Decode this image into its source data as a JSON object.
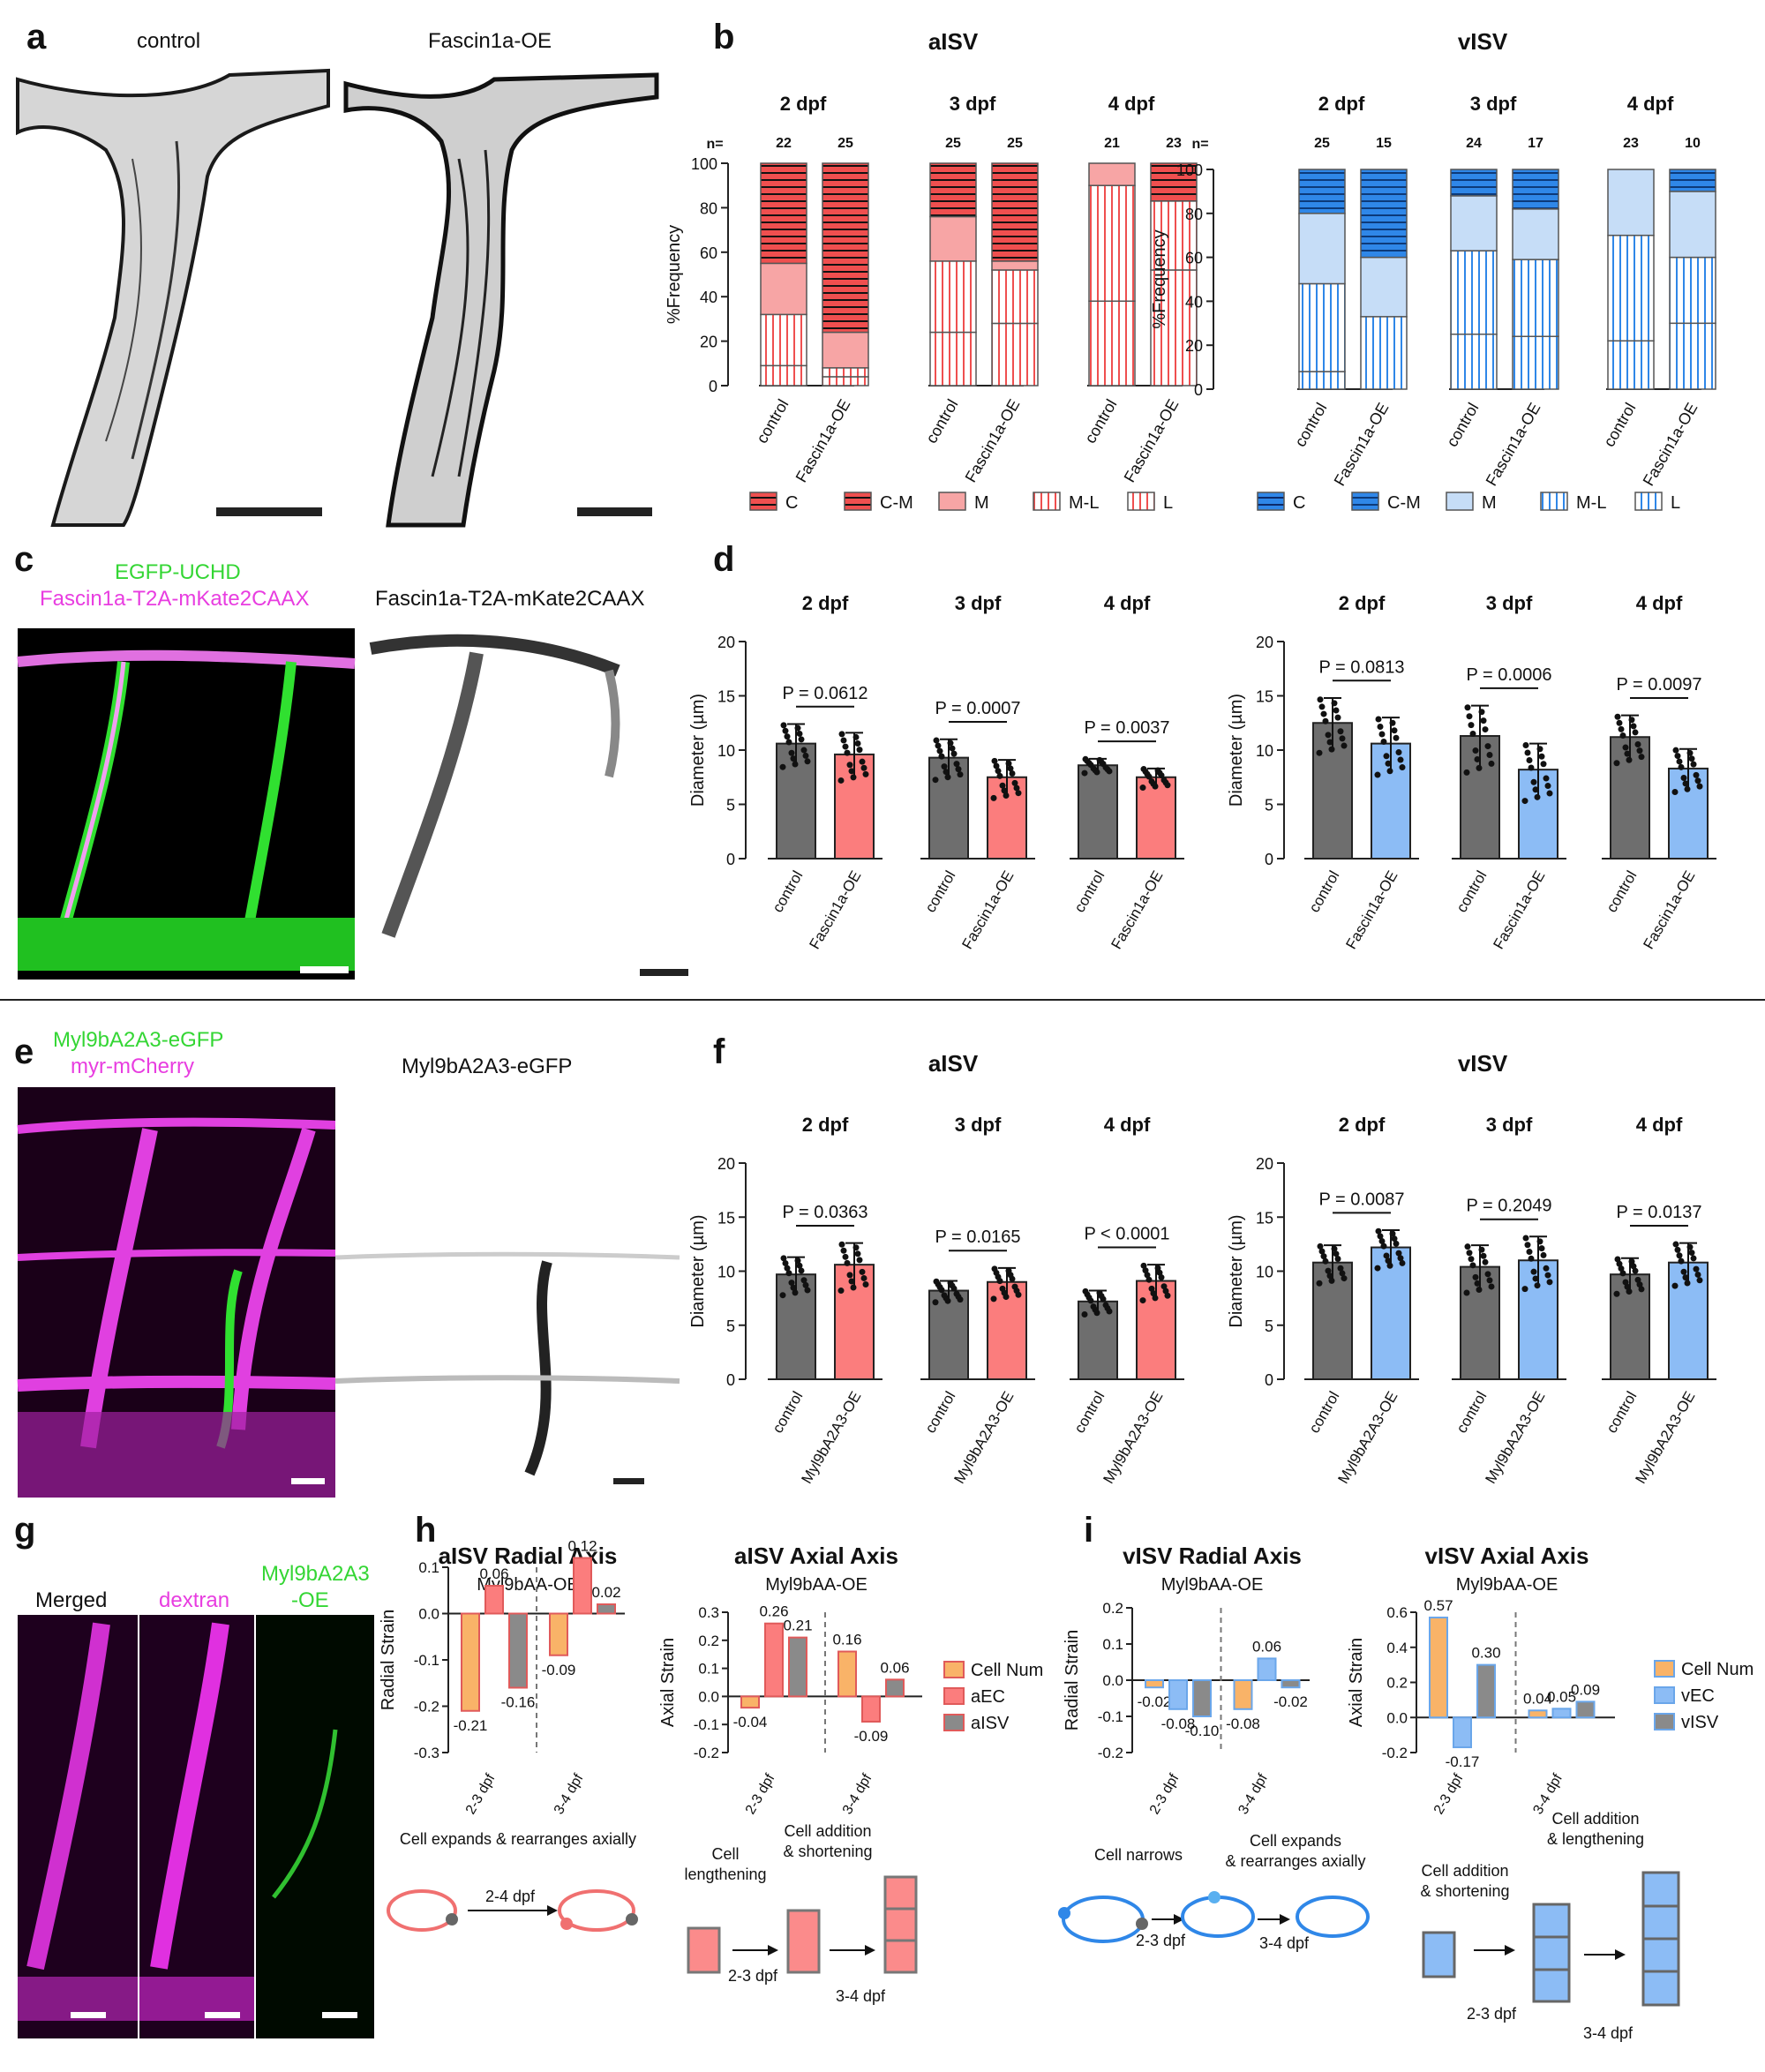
{
  "panel_labels": {
    "a": "a",
    "b": "b",
    "c": "c",
    "d": "d",
    "e": "e",
    "f": "f",
    "g": "g",
    "h": "h",
    "i": "i"
  },
  "colors": {
    "artery": "#ef4f4f",
    "artery_light": "#f7a5a5",
    "artery_bar": "#fb7d7d",
    "vein": "#2f87e8",
    "vein_light": "#c6ddf7",
    "vein_bar": "#8cbcf5",
    "control_bar": "#6e6e6e",
    "green": "#34d634",
    "magenta": "#e83de0",
    "orange": "#f9b368"
  },
  "panel_a": {
    "title_control": "control",
    "title_oe": "Fascin1a-OE"
  },
  "panel_c": {
    "title_green": "EGFP-UCHD",
    "title_magenta": "Fascin1a-T2A-mKate2CAAX",
    "title_gray": "Fascin1a-T2A-mKate2CAAX"
  },
  "panel_e": {
    "title_green": "Myl9bA2A3-eGFP",
    "title_magenta": "myr-mCherry",
    "title_gray": "Myl9bA2A3-eGFP"
  },
  "panel_g": {
    "t1": "Merged",
    "t2": "dextran",
    "t3a": "Myl9bA2A3",
    "t3b": "-OE"
  },
  "panel_b": {
    "ylabel": "%Frequency",
    "n_label": "n=",
    "legend": [
      "C",
      "C-M",
      "M",
      "M-L",
      "L"
    ],
    "groups": [
      {
        "title": "aISV",
        "kind": "artery",
        "days": [
          {
            "label": "2 dpf",
            "n": [
              "22",
              "25"
            ],
            "stacks": [
              [
                9,
                23,
                23,
                45,
                0
              ],
              [
                4,
                4,
                16,
                76,
                0
              ]
            ]
          },
          {
            "label": "3 dpf",
            "n": [
              "25",
              "25"
            ],
            "stacks": [
              [
                24,
                32,
                20,
                24,
                0
              ],
              [
                28,
                24,
                4,
                44,
                0
              ]
            ]
          },
          {
            "label": "4 dpf",
            "n": [
              "21",
              "23"
            ],
            "stacks": [
              [
                38,
                52,
                10,
                0,
                0
              ],
              [
                52,
                31,
                0,
                17,
                0
              ]
            ]
          }
        ]
      },
      {
        "title": "vISV",
        "kind": "vein",
        "days": [
          {
            "label": "2 dpf",
            "n": [
              "25",
              "15"
            ],
            "stacks": [
              [
                8,
                40,
                32,
                20,
                0
              ],
              [
                0,
                33,
                27,
                40,
                0
              ]
            ]
          },
          {
            "label": "3 dpf",
            "n": [
              "24",
              "17"
            ],
            "stacks": [
              [
                25,
                38,
                25,
                12,
                0
              ],
              [
                24,
                35,
                23,
                18,
                0
              ]
            ]
          },
          {
            "label": "4 dpf",
            "n": [
              "23",
              "10"
            ],
            "stacks": [
              [
                22,
                48,
                30,
                0,
                0
              ],
              [
                30,
                30,
                30,
                10,
                0
              ]
            ]
          }
        ]
      }
    ],
    "xlabels": [
      "control",
      "Fascin1a-OE"
    ],
    "yticks": [
      "0",
      "20",
      "40",
      "60",
      "80",
      "100"
    ]
  },
  "panel_d": {
    "ylabel": "Diameter (µm)",
    "yticks": [
      "0",
      "5",
      "10",
      "15",
      "20"
    ],
    "xlabels": [
      "control",
      "Fascin1a-OE"
    ],
    "groups": [
      {
        "kind": "artery",
        "days": [
          {
            "label": "2 dpf",
            "p": "P = 0.0612",
            "means": [
              10.6,
              9.6
            ],
            "sd": [
              1.8,
              2.0
            ]
          },
          {
            "label": "3 dpf",
            "p": "P = 0.0007",
            "means": [
              9.3,
              7.5
            ],
            "sd": [
              1.7,
              1.6
            ]
          },
          {
            "label": "4 dpf",
            "p": "P = 0.0037",
            "means": [
              8.6,
              7.5
            ],
            "sd": [
              0.6,
              0.8
            ]
          }
        ]
      },
      {
        "kind": "vein",
        "days": [
          {
            "label": "2 dpf",
            "p": "P = 0.0813",
            "means": [
              12.5,
              10.6
            ],
            "sd": [
              2.3,
              2.4
            ]
          },
          {
            "label": "3 dpf",
            "p": "P = 0.0006",
            "means": [
              11.3,
              8.2
            ],
            "sd": [
              2.8,
              2.4
            ]
          },
          {
            "label": "4 dpf",
            "p": "P = 0.0097",
            "means": [
              11.2,
              8.3
            ],
            "sd": [
              2.0,
              1.8
            ]
          }
        ]
      }
    ]
  },
  "panel_f": {
    "ylabel": "Diameter (µm)",
    "yticks": [
      "0",
      "5",
      "10",
      "15",
      "20"
    ],
    "xlabels": [
      "control",
      "Myl9bA2A3-OE"
    ],
    "groups": [
      {
        "title": "aISV",
        "kind": "artery",
        "days": [
          {
            "label": "2 dpf",
            "p": "P = 0.0363",
            "means": [
              9.7,
              10.6
            ],
            "sd": [
              1.6,
              2.0
            ]
          },
          {
            "label": "3 dpf",
            "p": "P = 0.0165",
            "means": [
              8.2,
              9.0
            ],
            "sd": [
              0.9,
              1.3
            ]
          },
          {
            "label": "4 dpf",
            "p": "P < 0.0001",
            "means": [
              7.2,
              9.1
            ],
            "sd": [
              1.0,
              1.5
            ]
          }
        ]
      },
      {
        "title": "vISV",
        "kind": "vein",
        "days": [
          {
            "label": "2 dpf",
            "p": "P = 0.0087",
            "means": [
              10.8,
              12.2
            ],
            "sd": [
              1.6,
              1.6
            ]
          },
          {
            "label": "3 dpf",
            "p": "P = 0.2049",
            "means": [
              10.4,
              11.0
            ],
            "sd": [
              2.0,
              2.2
            ]
          },
          {
            "label": "4 dpf",
            "p": "P = 0.0137",
            "means": [
              9.7,
              10.8
            ],
            "sd": [
              1.5,
              1.8
            ]
          }
        ]
      }
    ]
  },
  "panel_h": {
    "radial": {
      "title": "aISV Radial Axis",
      "subtitle": "Myl9bAA-OE",
      "ylabel": "Radial Strain",
      "yticks": [
        "0.1",
        "0.0",
        "-0.1",
        "-0.2",
        "-0.3"
      ],
      "xlabels": [
        "2-3 dpf",
        "3-4 dpf"
      ],
      "values": [
        [
          -0.21,
          0.06,
          -0.16
        ],
        [
          -0.09,
          0.12,
          0.02
        ]
      ],
      "value_labels": [
        [
          "-0.21",
          "0.06",
          "-0.16"
        ],
        [
          "-0.09",
          "0.12",
          "0.02"
        ]
      ]
    },
    "axial": {
      "title": "aISV Axial Axis",
      "subtitle": "Myl9bAA-OE",
      "ylabel": "Axial Strain",
      "yticks": [
        "0.3",
        "0.2",
        "0.1",
        "0.0",
        "-0.1",
        "-0.2"
      ],
      "xlabels": [
        "2-3 dpf",
        "3-4 dpf"
      ],
      "values": [
        [
          -0.04,
          0.26,
          0.21
        ],
        [
          0.16,
          -0.09,
          0.06
        ]
      ],
      "value_labels": [
        [
          "-0.04",
          "0.26",
          "0.21"
        ],
        [
          "0.16",
          "-0.09",
          "0.06"
        ]
      ]
    },
    "legend": [
      "Cell Num",
      "aEC",
      "aISV"
    ],
    "schematic_left": "Cell expands & rearranges axially",
    "arrow_left": "2-4 dpf",
    "cell_lengthening": [
      "Cell",
      "lengthening"
    ],
    "cell_addition": [
      "Cell addition",
      "& shortening"
    ],
    "arrow1": "2-3 dpf",
    "arrow2": "3-4 dpf"
  },
  "panel_i": {
    "radial": {
      "title": "vISV Radial Axis",
      "subtitle": "Myl9bAA-OE",
      "ylabel": "Radial Strain",
      "yticks": [
        "0.2",
        "0.1",
        "0.0",
        "-0.1",
        "-0.2"
      ],
      "xlabels": [
        "2-3 dpf",
        "3-4 dpf"
      ],
      "values": [
        [
          -0.02,
          -0.08,
          -0.1
        ],
        [
          -0.08,
          0.06,
          -0.02
        ]
      ],
      "value_labels": [
        [
          "-0.02",
          "-0.08",
          "-0.10"
        ],
        [
          "-0.08",
          "0.06",
          "-0.02"
        ]
      ]
    },
    "axial": {
      "title": "vISV Axial Axis",
      "subtitle": "Myl9bAA-OE",
      "ylabel": "Axial Strain",
      "yticks": [
        "0.6",
        "0.4",
        "0.2",
        "0.0",
        "-0.2"
      ],
      "xlabels": [
        "2-3 dpf",
        "3-4 dpf"
      ],
      "values": [
        [
          0.57,
          -0.17,
          0.3
        ],
        [
          0.04,
          0.05,
          0.09
        ]
      ],
      "value_labels": [
        [
          "0.57",
          "-0.17",
          "0.30"
        ],
        [
          "0.04",
          "0.05",
          "0.09"
        ]
      ]
    },
    "legend": [
      "Cell Num",
      "vEC",
      "vISV"
    ],
    "cell_narrows": "Cell narrows",
    "cell_expands": [
      "Cell expands",
      "& rearranges axially"
    ],
    "cell_addition_short": [
      "Cell addition",
      "& shortening"
    ],
    "cell_addition_length": [
      "Cell addition",
      "& lengthening"
    ],
    "arrow1": "2-3 dpf",
    "arrow2": "3-4 dpf"
  }
}
